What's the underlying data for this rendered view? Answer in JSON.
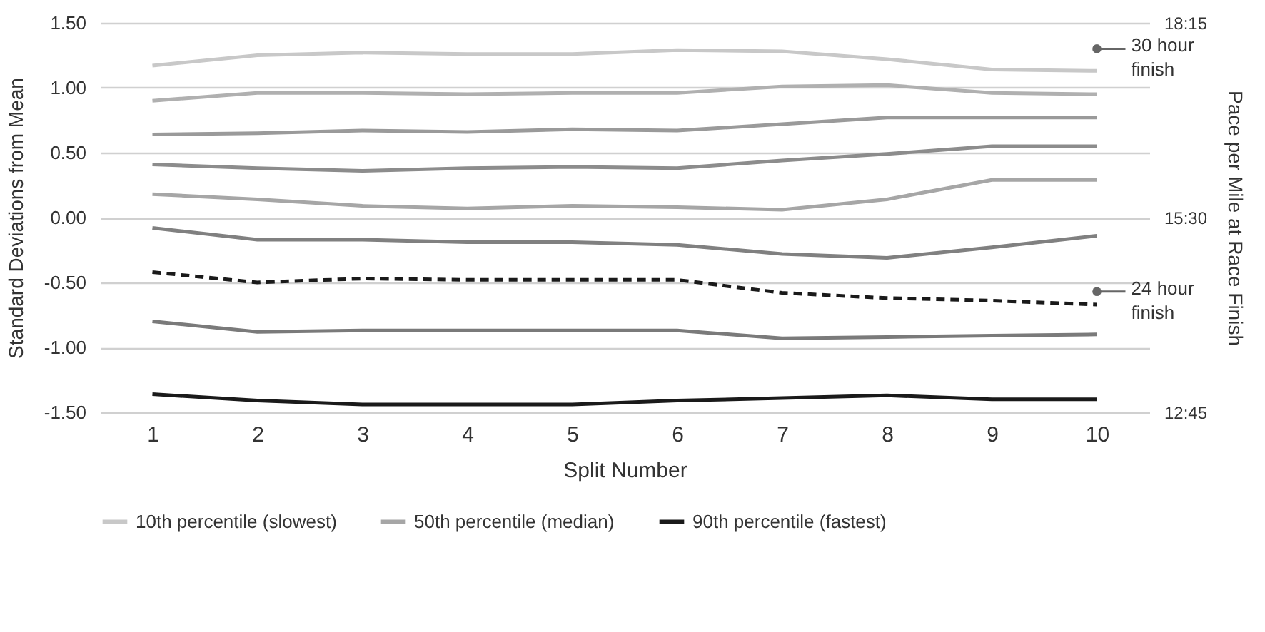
{
  "chart_data": {
    "type": "line",
    "xlabel": "Split Number",
    "ylabel": "Standard Deviations from Mean",
    "y2label": "Pace per Mile at Race Finish",
    "x": [
      1,
      2,
      3,
      4,
      5,
      6,
      7,
      8,
      9,
      10
    ],
    "xlim": [
      0.5,
      10.5
    ],
    "xticks": [
      1,
      2,
      3,
      4,
      5,
      6,
      7,
      8,
      9,
      10
    ],
    "ylim": [
      -1.5,
      1.5
    ],
    "yticks": [
      {
        "value": -1.5,
        "label": "-1.50"
      },
      {
        "value": -1,
        "label": "-1.00"
      },
      {
        "value": -0.5,
        "label": "-0.50"
      },
      {
        "value": 0,
        "label": "0.00"
      },
      {
        "value": 0.5,
        "label": "0.50"
      },
      {
        "value": 1,
        "label": "1.00"
      },
      {
        "value": 1.5,
        "label": "1.50"
      }
    ],
    "y2lim": [
      12.75,
      18.25
    ],
    "y2ticks": [
      {
        "value": 12.75,
        "label": "12:45"
      },
      {
        "value": 15.5,
        "label": "15:30"
      },
      {
        "value": 18.25,
        "label": "18:15"
      }
    ],
    "grid": "y",
    "legend": "bottom",
    "marker": "none",
    "series": [
      {
        "name": "10th percentile (slowest)",
        "color": "#c8c8c8",
        "values": [
          1.17,
          1.25,
          1.27,
          1.26,
          1.26,
          1.29,
          1.28,
          1.22,
          1.14,
          1.13
        ]
      },
      {
        "color": "#b0b0b0",
        "values": [
          0.9,
          0.96,
          0.96,
          0.95,
          0.96,
          0.96,
          1.01,
          1.02,
          0.96,
          0.95
        ]
      },
      {
        "color": "#9a9a9a",
        "values": [
          0.64,
          0.65,
          0.67,
          0.66,
          0.68,
          0.67,
          0.72,
          0.77,
          0.77,
          0.77
        ]
      },
      {
        "color": "#8c8c8c",
        "values": [
          0.41,
          0.38,
          0.36,
          0.38,
          0.39,
          0.38,
          0.44,
          0.49,
          0.55,
          0.55
        ]
      },
      {
        "name": "50th percentile (median)",
        "color": "#a6a6a6",
        "values": [
          0.18,
          0.14,
          0.09,
          0.07,
          0.09,
          0.08,
          0.06,
          0.14,
          0.29,
          0.29
        ]
      },
      {
        "color": "#808080",
        "values": [
          -0.08,
          -0.17,
          -0.17,
          -0.19,
          -0.19,
          -0.21,
          -0.28,
          -0.31,
          -0.23,
          -0.14
        ]
      },
      {
        "color": "#1a1a1a",
        "line_style": "dashed",
        "values": [
          -0.42,
          -0.5,
          -0.47,
          -0.48,
          -0.48,
          -0.48,
          -0.58,
          -0.62,
          -0.64,
          -0.67
        ]
      },
      {
        "color": "#7a7a7a",
        "values": [
          -0.8,
          -0.88,
          -0.87,
          -0.87,
          -0.87,
          -0.87,
          -0.93,
          -0.92,
          -0.91,
          -0.9
        ]
      },
      {
        "name": "90th percentile (fastest)",
        "color": "#1a1a1a",
        "values": [
          -1.36,
          -1.41,
          -1.44,
          -1.44,
          -1.44,
          -1.41,
          -1.39,
          -1.37,
          -1.4,
          -1.4
        ]
      }
    ],
    "annotations": [
      {
        "text": "30 hour finish",
        "x": 10,
        "y": 1.3
      },
      {
        "text": "24 hour finish",
        "x": 10,
        "y": -0.57
      }
    ]
  }
}
